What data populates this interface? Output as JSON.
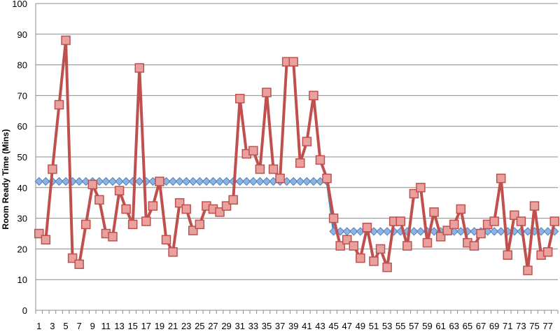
{
  "chart_data": {
    "type": "line",
    "title": "",
    "xlabel": "",
    "ylabel": "Room Ready Time (Mins)",
    "ylim": [
      0,
      100
    ],
    "y_ticks": [
      0,
      10,
      20,
      30,
      40,
      50,
      60,
      70,
      80,
      90,
      100
    ],
    "x": [
      1,
      2,
      3,
      4,
      5,
      6,
      7,
      8,
      9,
      10,
      11,
      12,
      13,
      14,
      15,
      16,
      17,
      18,
      19,
      20,
      21,
      22,
      23,
      24,
      25,
      26,
      27,
      28,
      29,
      30,
      31,
      32,
      33,
      34,
      35,
      36,
      37,
      38,
      39,
      40,
      41,
      42,
      43,
      44,
      45,
      46,
      47,
      48,
      49,
      50,
      51,
      52,
      53,
      54,
      55,
      56,
      57,
      58,
      59,
      60,
      61,
      62,
      63,
      64,
      65,
      66,
      67,
      68,
      69,
      70,
      71,
      72,
      73,
      74,
      75,
      76,
      77,
      78
    ],
    "x_tick_labels": [
      1,
      3,
      5,
      7,
      9,
      11,
      13,
      15,
      17,
      19,
      21,
      23,
      25,
      27,
      29,
      31,
      33,
      35,
      37,
      39,
      41,
      43,
      45,
      47,
      49,
      51,
      53,
      55,
      57,
      59,
      61,
      63,
      65,
      67,
      69,
      71,
      73,
      75,
      77
    ],
    "grid": "horizontal",
    "legend": "none",
    "series": [
      {
        "color": "#4f81bd",
        "marker": "diamond",
        "values": [
          42,
          42,
          42,
          42,
          42,
          42,
          42,
          42,
          42,
          42,
          42,
          42,
          42,
          42,
          42,
          42,
          42,
          42,
          42,
          42,
          42,
          42,
          42,
          42,
          42,
          42,
          42,
          42,
          42,
          42,
          42,
          42,
          42,
          42,
          42,
          42,
          42,
          42,
          42,
          42,
          42,
          42,
          42,
          42,
          25.7,
          25.7,
          25.7,
          25.7,
          25.7,
          25.7,
          25.7,
          25.7,
          25.7,
          25.7,
          25.7,
          25.7,
          25.7,
          25.7,
          25.7,
          25.7,
          25.7,
          25.7,
          25.7,
          25.7,
          25.7,
          25.7,
          25.7,
          25.7,
          25.7,
          25.7,
          25.7,
          25.7,
          25.7,
          25.7,
          25.7,
          25.7,
          25.7,
          25.7
        ]
      },
      {
        "color": "#c0504d",
        "marker": "square",
        "values": [
          25,
          23,
          46,
          67,
          88,
          17,
          15,
          28,
          41,
          36,
          25,
          24,
          39,
          33,
          28,
          79,
          29,
          34,
          42,
          23,
          19,
          35,
          33,
          26,
          28,
          34,
          33,
          32,
          34,
          36,
          69,
          51,
          52,
          46,
          71,
          46,
          43,
          81,
          81,
          48,
          55,
          70,
          49,
          43,
          30,
          21,
          23,
          21,
          17,
          27,
          16,
          20,
          14,
          29,
          29,
          21,
          38,
          40,
          22,
          32,
          24,
          26,
          28,
          33,
          22,
          21,
          25,
          28,
          29,
          43,
          18,
          31,
          29,
          13,
          34,
          18,
          19,
          29
        ]
      }
    ]
  }
}
